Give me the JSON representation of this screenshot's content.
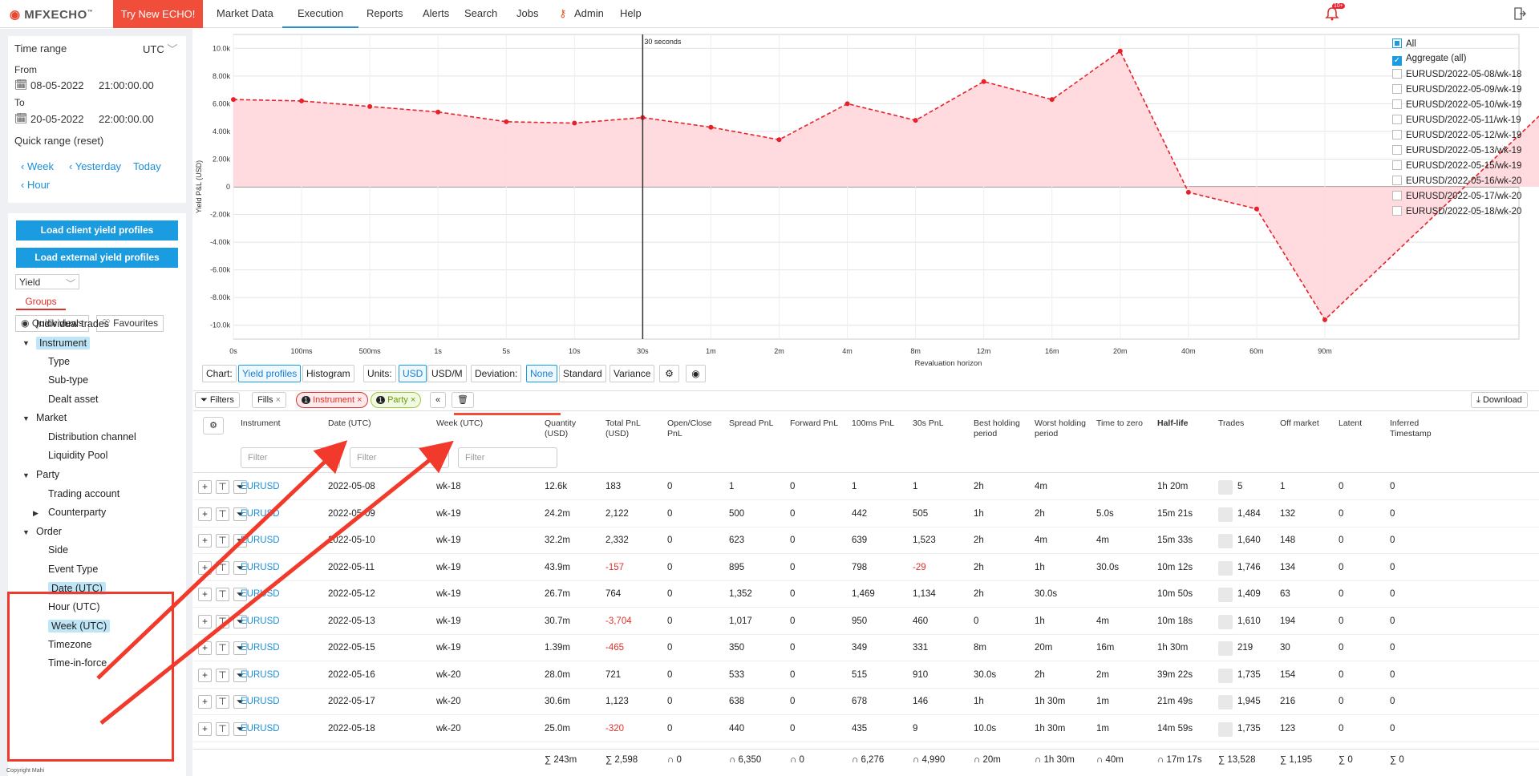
{
  "logo": {
    "text_a": "MFX",
    "text_b": "ECHO",
    "tm": "™"
  },
  "nav": {
    "try": "Try New ECHO!",
    "items": [
      "Market Data",
      "Execution",
      "Reports",
      "Alerts",
      "Search",
      "Jobs",
      "Admin",
      "Help"
    ],
    "active": "Execution"
  },
  "notifications": {
    "badge": "10+"
  },
  "time": {
    "title": "Time range",
    "tz": "UTC",
    "from_label": "From",
    "from_date": "08-05-2022",
    "from_time": "21:00:00.00",
    "to_label": "To",
    "to_date": "20-05-2022",
    "to_time": "22:00:00.00",
    "quick_label": "Quick range (reset)",
    "quick": [
      "Week",
      "Yesterday",
      "Today",
      "Hour"
    ]
  },
  "left": {
    "load_client": "Load client yield profiles",
    "load_external": "Load external yield profiles",
    "mode": "Yield",
    "groups_tab": "Groups",
    "quick_views": "Quick views",
    "favourites": "Favourites",
    "tree": [
      {
        "label": "Individual trades",
        "level": 0,
        "caret": "",
        "hl": false
      },
      {
        "label": "Instrument",
        "level": 0,
        "caret": "down",
        "hl": true
      },
      {
        "label": "Type",
        "level": 1,
        "caret": "",
        "hl": false
      },
      {
        "label": "Sub-type",
        "level": 1,
        "caret": "",
        "hl": false
      },
      {
        "label": "Dealt asset",
        "level": 1,
        "caret": "",
        "hl": false
      },
      {
        "label": "Market",
        "level": 0,
        "caret": "down",
        "hl": false
      },
      {
        "label": "Distribution channel",
        "level": 1,
        "caret": "",
        "hl": false
      },
      {
        "label": "Liquidity Pool",
        "level": 1,
        "caret": "",
        "hl": false
      },
      {
        "label": "Party",
        "level": 0,
        "caret": "down",
        "hl": false
      },
      {
        "label": "Trading account",
        "level": 1,
        "caret": "",
        "hl": false
      },
      {
        "label": "Counterparty",
        "level": 1,
        "caret": "right",
        "hl": false
      },
      {
        "label": "Order",
        "level": 0,
        "caret": "down",
        "hl": false
      },
      {
        "label": "Side",
        "level": 1,
        "caret": "",
        "hl": false
      },
      {
        "label": "Event Type",
        "level": 1,
        "caret": "",
        "hl": false
      },
      {
        "label": "Date (UTC)",
        "level": 1,
        "caret": "",
        "hl": true
      },
      {
        "label": "Hour (UTC)",
        "level": 1,
        "caret": "",
        "hl": false
      },
      {
        "label": "Week (UTC)",
        "level": 1,
        "caret": "",
        "hl": true
      },
      {
        "label": "Timezone",
        "level": 1,
        "caret": "",
        "hl": false
      },
      {
        "label": "Time-in-force",
        "level": 1,
        "caret": "",
        "hl": false
      }
    ],
    "copyright": "Copyright Mahi"
  },
  "chart_data": {
    "type": "area",
    "ylabel": "Yield P&L (USD)",
    "xlabel": "Revaluation horizon",
    "marker_label": "30 seconds",
    "categories": [
      "0s",
      "100ms",
      "500ms",
      "1s",
      "5s",
      "10s",
      "30s",
      "1m",
      "2m",
      "4m",
      "8m",
      "12m",
      "16m",
      "20m",
      "40m",
      "60m",
      "90m"
    ],
    "series": [
      {
        "name": "Aggregate (all)",
        "values": [
          6300,
          6200,
          5800,
          5400,
          4700,
          4600,
          5000,
          4300,
          3400,
          6000,
          4800,
          7600,
          6300,
          9800,
          -400,
          -1600,
          -9600
        ],
        "end_value": 5100
      }
    ],
    "ylim": [
      -11000,
      11000
    ],
    "yticks": [
      10000,
      8000,
      6000,
      4000,
      2000,
      0,
      -2000,
      -4000,
      -6000,
      -8000,
      -10000
    ],
    "ytick_labels": [
      "10.0k",
      "8.00k",
      "6.00k",
      "4.00k",
      "2.00k",
      "0",
      "-2.00k",
      "-4.00k",
      "-6.00k",
      "-8.00k",
      "-10.0k"
    ],
    "grid": true,
    "legend": [
      {
        "label": "All",
        "checked": "partial"
      },
      {
        "label": "Aggregate (all)",
        "checked": "on"
      },
      {
        "label": "EURUSD/2022-05-08/wk-18",
        "checked": "off"
      },
      {
        "label": "EURUSD/2022-05-09/wk-19",
        "checked": "off"
      },
      {
        "label": "EURUSD/2022-05-10/wk-19",
        "checked": "off"
      },
      {
        "label": "EURUSD/2022-05-11/wk-19",
        "checked": "off"
      },
      {
        "label": "EURUSD/2022-05-12/wk-19",
        "checked": "off"
      },
      {
        "label": "EURUSD/2022-05-13/wk-19",
        "checked": "off"
      },
      {
        "label": "EURUSD/2022-05-15/wk-19",
        "checked": "off"
      },
      {
        "label": "EURUSD/2022-05-16/wk-20",
        "checked": "off"
      },
      {
        "label": "EURUSD/2022-05-17/wk-20",
        "checked": "off"
      },
      {
        "label": "EURUSD/2022-05-18/wk-20",
        "checked": "off"
      }
    ],
    "colors": {
      "line": "#e8202a",
      "fill": "#ffd6da"
    }
  },
  "chart_toolbar": {
    "chart": "Chart:",
    "yield": "Yield profiles",
    "hist": "Histogram",
    "units": "Units:",
    "usd": "USD",
    "usdm": "USD/M",
    "dev": "Deviation:",
    "none": "None",
    "standard": "Standard",
    "variance": "Variance"
  },
  "filters": {
    "label": "Filters",
    "fills": "Fills",
    "instrument_count": "1",
    "instrument": "Instrument",
    "party_count": "1",
    "party": "Party",
    "download": "Download"
  },
  "table": {
    "columns": [
      "Instrument",
      "Date (UTC)",
      "Week (UTC)",
      "Quantity (USD)",
      "Total PnL (USD)",
      "Open/Close PnL",
      "Spread PnL",
      "Forward PnL",
      "100ms PnL",
      "30s PnL",
      "Best holding period",
      "Worst holding period",
      "Time to zero",
      "Half-life",
      "Trades",
      "Off market",
      "Latent",
      "Inferred Timestamp"
    ],
    "filter_placeholder": "Filter",
    "rows": [
      [
        "EURUSD",
        "2022-05-08",
        "wk-18",
        "12.6k",
        "183",
        "0",
        "1",
        "0",
        "1",
        "1",
        "2h",
        "4m",
        "",
        "1h 20m",
        "5",
        "1",
        "0",
        "0"
      ],
      [
        "EURUSD",
        "2022-05-09",
        "wk-19",
        "24.2m",
        "2,122",
        "0",
        "500",
        "0",
        "442",
        "505",
        "1h",
        "2h",
        "5.0s",
        "15m 21s",
        "1,484",
        "132",
        "0",
        "0"
      ],
      [
        "EURUSD",
        "2022-05-10",
        "wk-19",
        "32.2m",
        "2,332",
        "0",
        "623",
        "0",
        "639",
        "1,523",
        "2h",
        "4m",
        "4m",
        "15m 33s",
        "1,640",
        "148",
        "0",
        "0"
      ],
      [
        "EURUSD",
        "2022-05-11",
        "wk-19",
        "43.9m",
        "-157",
        "0",
        "895",
        "0",
        "798",
        "-29",
        "2h",
        "1h",
        "30.0s",
        "10m 12s",
        "1,746",
        "134",
        "0",
        "0"
      ],
      [
        "EURUSD",
        "2022-05-12",
        "wk-19",
        "26.7m",
        "764",
        "0",
        "1,352",
        "0",
        "1,469",
        "1,134",
        "2h",
        "30.0s",
        "",
        "10m 50s",
        "1,409",
        "63",
        "0",
        "0"
      ],
      [
        "EURUSD",
        "2022-05-13",
        "wk-19",
        "30.7m",
        "-3,704",
        "0",
        "1,017",
        "0",
        "950",
        "460",
        "0",
        "1h",
        "4m",
        "10m 18s",
        "1,610",
        "194",
        "0",
        "0"
      ],
      [
        "EURUSD",
        "2022-05-15",
        "wk-19",
        "1.39m",
        "-465",
        "0",
        "350",
        "0",
        "349",
        "331",
        "8m",
        "20m",
        "16m",
        "1h 30m",
        "219",
        "30",
        "0",
        "0"
      ],
      [
        "EURUSD",
        "2022-05-16",
        "wk-20",
        "28.0m",
        "721",
        "0",
        "533",
        "0",
        "515",
        "910",
        "30.0s",
        "2h",
        "2m",
        "39m 22s",
        "1,735",
        "154",
        "0",
        "0"
      ],
      [
        "EURUSD",
        "2022-05-17",
        "wk-20",
        "30.6m",
        "1,123",
        "0",
        "638",
        "0",
        "678",
        "146",
        "1h",
        "1h 30m",
        "1m",
        "21m 49s",
        "1,945",
        "216",
        "0",
        "0"
      ],
      [
        "EURUSD",
        "2022-05-18",
        "wk-20",
        "25.0m",
        "-320",
        "0",
        "440",
        "0",
        "435",
        "9",
        "10.0s",
        "1h 30m",
        "1m",
        "14m 59s",
        "1,735",
        "123",
        "0",
        "0"
      ]
    ],
    "totals": [
      "∑ 243m",
      "∑ 2,598",
      "∩ 0",
      "∩ 6,350",
      "∩ 0",
      "∩ 6,276",
      "∩ 4,990",
      "∩ 20m",
      "∩ 1h 30m",
      "∩ 40m",
      "∩ 17m 17s",
      "∑ 13,528",
      "∑ 1,195",
      "∑ 0",
      "∑ 0"
    ]
  }
}
